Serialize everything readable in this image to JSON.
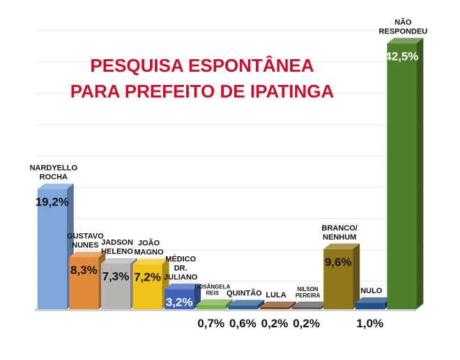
{
  "chart_data": {
    "type": "bar",
    "title": [
      "PESQUISA ESPONTÂNEA",
      "PARA PREFEITO DE IPATINGA"
    ],
    "categories": [
      [
        "NARDYELLO",
        "ROCHA"
      ],
      [
        "GUSTAVO",
        "NUNES"
      ],
      [
        "JADSON",
        "HELENO"
      ],
      [
        "JOÃO",
        "MAGNO"
      ],
      [
        "MÉDICO",
        "DR.",
        "JULIANO"
      ],
      [
        "ROSÂNGELA",
        "REIS"
      ],
      [
        "QUINTÃO"
      ],
      [
        "LULA"
      ],
      [
        "NILSON",
        "PEREIRA"
      ],
      [
        "BRANCO/",
        "NENHUM"
      ],
      [
        "NULO"
      ],
      [
        "NÃO",
        "RESPONDEU"
      ]
    ],
    "values": [
      19.2,
      8.3,
      7.3,
      7.2,
      3.2,
      0.7,
      0.6,
      0.2,
      0.2,
      9.6,
      1.0,
      42.5
    ],
    "value_labels": [
      "19,2%",
      "8,3%",
      "7,3%",
      "7,2%",
      "3,2%",
      "0,7%",
      "0,6%",
      "0,2%",
      "0,2%",
      "9,6%",
      "1,0%",
      "42,5%"
    ],
    "colors": [
      "#7ea6dc",
      "#e08a3c",
      "#b5b5b5",
      "#f2c318",
      "#3f63b8",
      "#78b04b",
      "#2a5d91",
      "#8a4a1c",
      "#5a5a5a",
      "#8f7719",
      "#1f4f86",
      "#4e7f2a"
    ],
    "grid": true,
    "legend": "none"
  }
}
